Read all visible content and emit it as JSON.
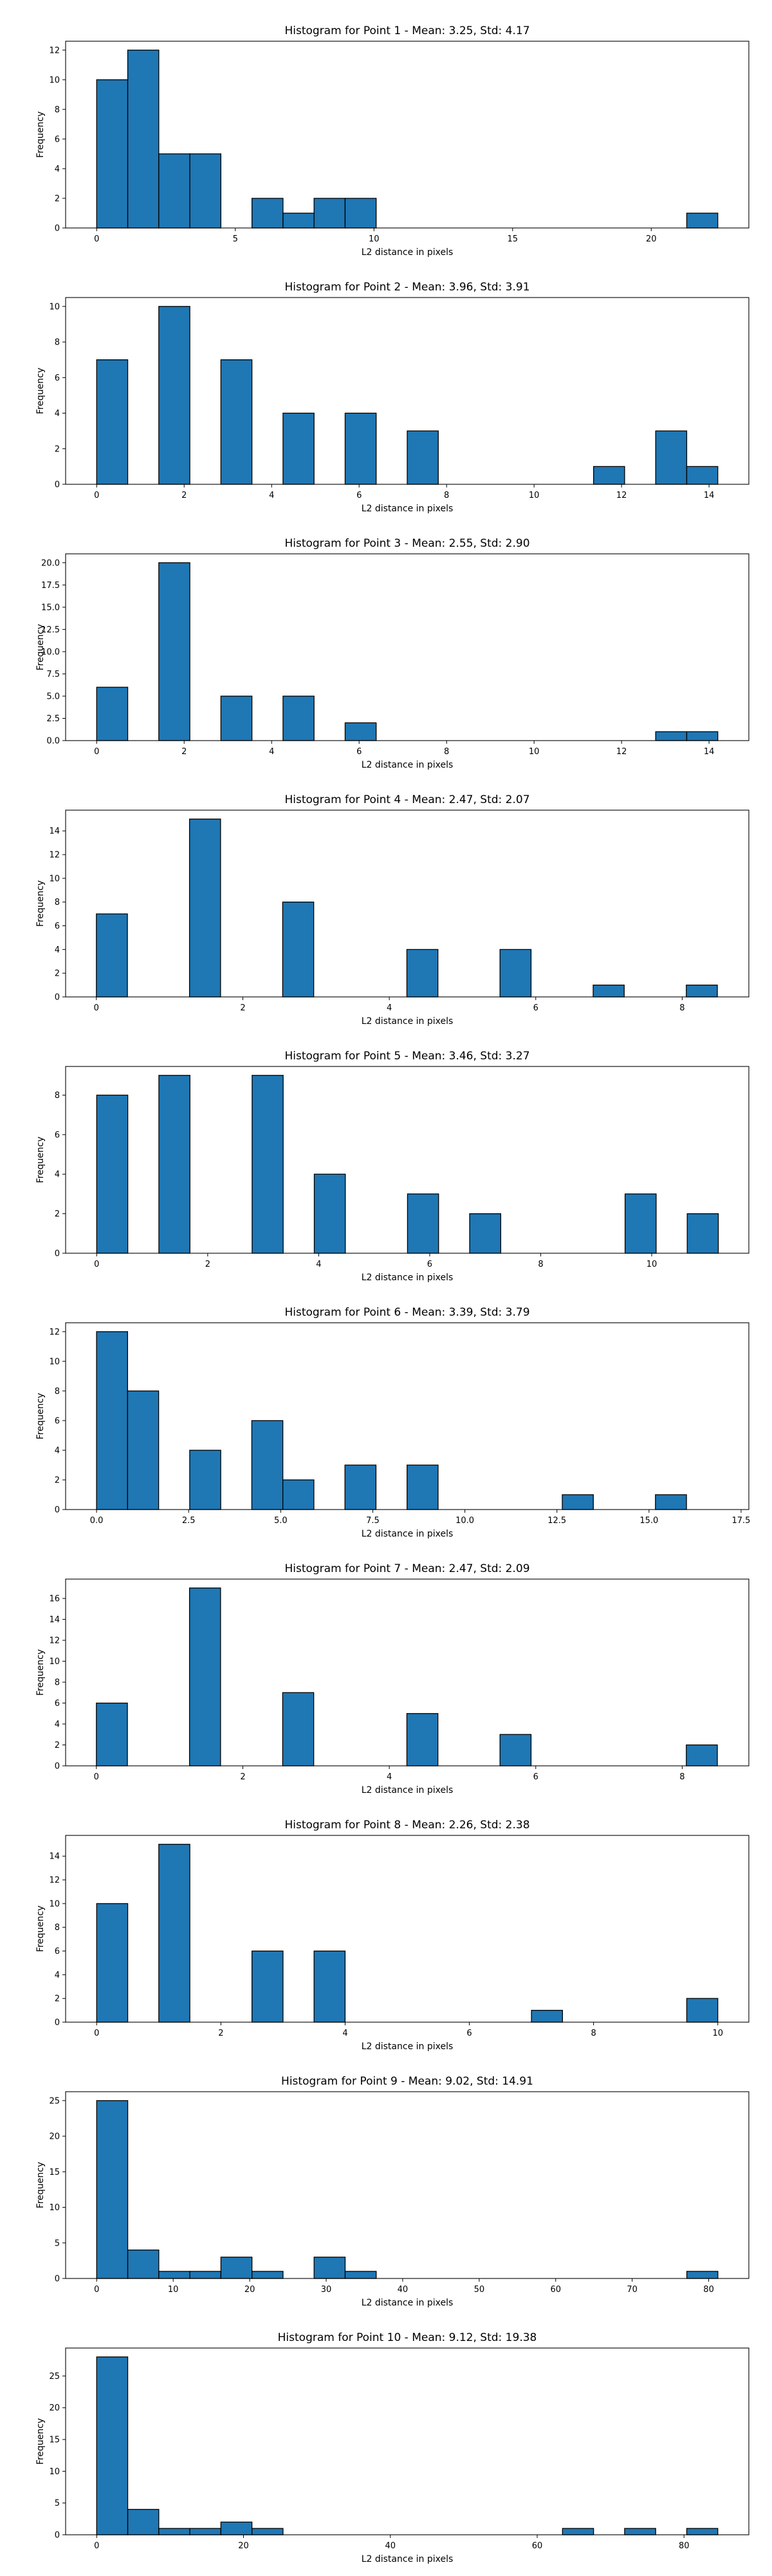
{
  "chart_data": [
    {
      "type": "bar",
      "title": "Histogram for Point 1 - Mean: 3.25, Std: 4.17",
      "xlabel": "L2 distance in pixels",
      "ylabel": "Frequency",
      "xlim": [
        -1.12,
        23.52
      ],
      "ylim": [
        0,
        12.6
      ],
      "xticks": [
        0,
        5,
        10,
        15,
        20
      ],
      "xtick_labels": [
        "0",
        "5",
        "10",
        "15",
        "20"
      ],
      "yticks": [
        0,
        2,
        4,
        6,
        8,
        10,
        12
      ],
      "ytick_labels": [
        "0",
        "2",
        "4",
        "6",
        "8",
        "10",
        "12"
      ],
      "bin_width": 1.12,
      "bin_starts": [
        0,
        1.12,
        2.24,
        3.36,
        5.6,
        6.72,
        7.84,
        8.96,
        21.28
      ],
      "values": [
        10,
        12,
        5,
        5,
        2,
        1,
        2,
        2,
        1
      ],
      "bar_color": "#1f77b4",
      "edge_color": "#000000"
    },
    {
      "type": "bar",
      "title": "Histogram for Point 2 - Mean: 3.96, Std: 3.91",
      "xlabel": "L2 distance in pixels",
      "ylabel": "Frequency",
      "xlim": [
        -0.71,
        14.91
      ],
      "ylim": [
        0,
        10.5
      ],
      "xticks": [
        0,
        2,
        4,
        6,
        8,
        10,
        12,
        14
      ],
      "xtick_labels": [
        "0",
        "2",
        "4",
        "6",
        "8",
        "10",
        "12",
        "14"
      ],
      "yticks": [
        0,
        2,
        4,
        6,
        8,
        10
      ],
      "ytick_labels": [
        "0",
        "2",
        "4",
        "6",
        "8",
        "10"
      ],
      "bin_width": 0.71,
      "bin_starts": [
        0,
        1.42,
        2.84,
        4.26,
        5.68,
        7.1,
        11.36,
        12.78,
        13.49
      ],
      "values": [
        7,
        10,
        7,
        4,
        4,
        3,
        1,
        3,
        1
      ],
      "bar_color": "#1f77b4",
      "edge_color": "#000000"
    },
    {
      "type": "bar",
      "title": "Histogram for Point 3 - Mean: 2.55, Std: 2.90",
      "xlabel": "L2 distance in pixels",
      "ylabel": "Frequency",
      "xlim": [
        -0.71,
        14.91
      ],
      "ylim": [
        0,
        21
      ],
      "xticks": [
        0,
        2,
        4,
        6,
        8,
        10,
        12,
        14
      ],
      "xtick_labels": [
        "0",
        "2",
        "4",
        "6",
        "8",
        "10",
        "12",
        "14"
      ],
      "yticks": [
        0,
        2.5,
        5,
        7.5,
        10,
        12.5,
        15,
        17.5,
        20
      ],
      "ytick_labels": [
        "0.0",
        "2.5",
        "5.0",
        "7.5",
        "10.0",
        "12.5",
        "15.0",
        "17.5",
        "20.0"
      ],
      "bin_width": 0.71,
      "bin_starts": [
        0,
        1.42,
        2.84,
        4.26,
        5.68,
        12.78,
        13.49
      ],
      "values": [
        6,
        20,
        5,
        5,
        2,
        1,
        1
      ],
      "bar_color": "#1f77b4",
      "edge_color": "#000000"
    },
    {
      "type": "bar",
      "title": "Histogram for Point 4 - Mean: 2.47, Std: 2.07",
      "xlabel": "L2 distance in pixels",
      "ylabel": "Frequency",
      "xlim": [
        -0.42,
        8.91
      ],
      "ylim": [
        0,
        15.75
      ],
      "xticks": [
        0,
        2,
        4,
        6,
        8
      ],
      "xtick_labels": [
        "0",
        "2",
        "4",
        "6",
        "8"
      ],
      "yticks": [
        0,
        2,
        4,
        6,
        8,
        10,
        12,
        14
      ],
      "ytick_labels": [
        "0",
        "2",
        "4",
        "6",
        "8",
        "10",
        "12",
        "14"
      ],
      "bin_width": 0.424,
      "bin_starts": [
        0,
        1.272,
        2.544,
        4.24,
        5.512,
        6.784,
        8.056
      ],
      "values": [
        7,
        15,
        8,
        4,
        4,
        1,
        1
      ],
      "bar_color": "#1f77b4",
      "edge_color": "#000000"
    },
    {
      "type": "bar",
      "title": "Histogram for Point 5 - Mean: 3.46, Std: 3.27",
      "xlabel": "L2 distance in pixels",
      "ylabel": "Frequency",
      "xlim": [
        -0.56,
        11.75
      ],
      "ylim": [
        0,
        9.45
      ],
      "xticks": [
        0,
        2,
        4,
        6,
        8,
        10
      ],
      "xtick_labels": [
        "0",
        "2",
        "4",
        "6",
        "8",
        "10"
      ],
      "yticks": [
        0,
        2,
        4,
        6,
        8
      ],
      "ytick_labels": [
        "0",
        "2",
        "4",
        "6",
        "8"
      ],
      "bin_width": 0.56,
      "bin_starts": [
        0,
        1.12,
        2.8,
        3.92,
        5.6,
        6.72,
        9.52,
        10.64
      ],
      "values": [
        8,
        9,
        9,
        4,
        3,
        2,
        3,
        2
      ],
      "bar_color": "#1f77b4",
      "edge_color": "#000000"
    },
    {
      "type": "bar",
      "title": "Histogram for Point 6 - Mean: 3.39, Std: 3.79",
      "xlabel": "L2 distance in pixels",
      "ylabel": "Frequency",
      "xlim": [
        -0.84,
        17.71
      ],
      "ylim": [
        0,
        12.6
      ],
      "xticks": [
        0,
        2.5,
        5,
        7.5,
        10,
        12.5,
        15,
        17.5
      ],
      "xtick_labels": [
        "0.0",
        "2.5",
        "5.0",
        "7.5",
        "10.0",
        "12.5",
        "15.0",
        "17.5"
      ],
      "yticks": [
        0,
        2,
        4,
        6,
        8,
        10,
        12
      ],
      "ytick_labels": [
        "0",
        "2",
        "4",
        "6",
        "8",
        "10",
        "12"
      ],
      "bin_width": 0.843,
      "bin_starts": [
        0,
        0.843,
        2.529,
        4.215,
        5.058,
        6.744,
        8.43,
        12.645,
        15.174
      ],
      "values": [
        12,
        8,
        4,
        6,
        2,
        3,
        3,
        1,
        1
      ],
      "bar_color": "#1f77b4",
      "edge_color": "#000000"
    },
    {
      "type": "bar",
      "title": "Histogram for Point 7 - Mean: 2.47, Std: 2.09",
      "xlabel": "L2 distance in pixels",
      "ylabel": "Frequency",
      "xlim": [
        -0.42,
        8.91
      ],
      "ylim": [
        0,
        17.85
      ],
      "xticks": [
        0,
        2,
        4,
        6,
        8
      ],
      "xtick_labels": [
        "0",
        "2",
        "4",
        "6",
        "8"
      ],
      "yticks": [
        0,
        2,
        4,
        6,
        8,
        10,
        12,
        14,
        16
      ],
      "ytick_labels": [
        "0",
        "2",
        "4",
        "6",
        "8",
        "10",
        "12",
        "14",
        "16"
      ],
      "bin_width": 0.424,
      "bin_starts": [
        0,
        1.272,
        2.544,
        4.24,
        5.512,
        8.056
      ],
      "values": [
        6,
        17,
        7,
        5,
        3,
        2
      ],
      "bar_color": "#1f77b4",
      "edge_color": "#000000"
    },
    {
      "type": "bar",
      "title": "Histogram for Point 8 - Mean: 2.26, Std: 2.38",
      "xlabel": "L2 distance in pixels",
      "ylabel": "Frequency",
      "xlim": [
        -0.5,
        10.5
      ],
      "ylim": [
        0,
        15.75
      ],
      "xticks": [
        0,
        2,
        4,
        6,
        8,
        10
      ],
      "xtick_labels": [
        "0",
        "2",
        "4",
        "6",
        "8",
        "10"
      ],
      "yticks": [
        0,
        2,
        4,
        6,
        8,
        10,
        12,
        14
      ],
      "ytick_labels": [
        "0",
        "2",
        "4",
        "6",
        "8",
        "10",
        "12",
        "14"
      ],
      "bin_width": 0.5,
      "bin_starts": [
        0,
        1,
        2.5,
        3.5,
        7,
        9.5
      ],
      "values": [
        10,
        15,
        6,
        6,
        1,
        2
      ],
      "bar_color": "#1f77b4",
      "edge_color": "#000000"
    },
    {
      "type": "bar",
      "title": "Histogram for Point 9 - Mean: 9.02, Std: 14.91",
      "xlabel": "L2 distance in pixels",
      "ylabel": "Frequency",
      "xlim": [
        -4.06,
        85.25
      ],
      "ylim": [
        0,
        26.25
      ],
      "xticks": [
        0,
        10,
        20,
        30,
        40,
        50,
        60,
        70,
        80
      ],
      "xtick_labels": [
        "0",
        "10",
        "20",
        "30",
        "40",
        "50",
        "60",
        "70",
        "80"
      ],
      "yticks": [
        0,
        5,
        10,
        15,
        20,
        25
      ],
      "ytick_labels": [
        "0",
        "5",
        "10",
        "15",
        "20",
        "25"
      ],
      "bin_width": 4.06,
      "bin_starts": [
        0,
        4.06,
        8.12,
        12.18,
        16.24,
        20.3,
        28.42,
        32.48,
        77.14
      ],
      "values": [
        25,
        4,
        1,
        1,
        3,
        1,
        3,
        1,
        1
      ],
      "bar_color": "#1f77b4",
      "edge_color": "#000000"
    },
    {
      "type": "bar",
      "title": "Histogram for Point 10 - Mean: 9.12, Std: 19.38",
      "xlabel": "L2 distance in pixels",
      "ylabel": "Frequency",
      "xlim": [
        -4.23,
        88.83
      ],
      "ylim": [
        0,
        29.4
      ],
      "xticks": [
        0,
        20,
        40,
        60,
        80
      ],
      "xtick_labels": [
        "0",
        "20",
        "40",
        "60",
        "80"
      ],
      "yticks": [
        0,
        5,
        10,
        15,
        20,
        25
      ],
      "ytick_labels": [
        "0",
        "5",
        "10",
        "15",
        "20",
        "25"
      ],
      "bin_width": 4.23,
      "bin_starts": [
        0,
        4.23,
        8.46,
        12.69,
        16.92,
        21.15,
        63.45,
        71.91,
        80.37
      ],
      "values": [
        28,
        4,
        1,
        1,
        2,
        1,
        1,
        1,
        1
      ],
      "bar_color": "#1f77b4",
      "edge_color": "#000000"
    }
  ]
}
